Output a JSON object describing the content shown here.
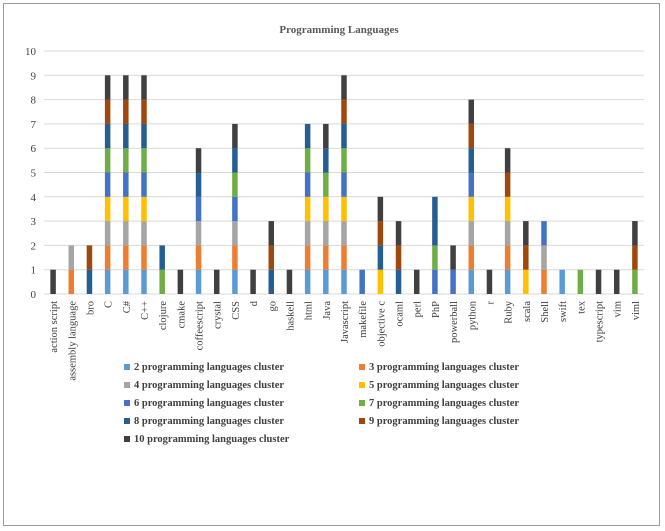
{
  "chart_data": {
    "type": "bar",
    "stacked": true,
    "title": "Programming Languages",
    "xlabel": "",
    "ylabel": "",
    "ylim": [
      0,
      10
    ],
    "yticks": [
      0,
      1,
      2,
      3,
      4,
      5,
      6,
      7,
      8,
      9,
      10
    ],
    "grid": true,
    "legend_position": "bottom",
    "categories": [
      "action script",
      "assembly language",
      "bro",
      "C",
      "C#",
      "C++",
      "clojure",
      "cmake",
      "coffeescript",
      "crystal",
      "CSS",
      "d",
      "go",
      "haskell",
      "html",
      "Java",
      "Javascript",
      "makefile",
      "objective c",
      "ocaml",
      "perl",
      "PhP",
      "powerball",
      "python",
      "r",
      "Ruby",
      "scala",
      "Shell",
      "swift",
      "tex",
      "typescript",
      "vim",
      "viml"
    ],
    "series": [
      {
        "name": "2 programming languages cluster",
        "color": "#5b9bd5",
        "values": [
          0,
          0,
          0,
          1,
          1,
          1,
          0,
          0,
          1,
          0,
          1,
          0,
          0,
          0,
          1,
          1,
          1,
          0,
          0,
          0,
          0,
          0,
          0,
          1,
          0,
          1,
          0,
          0,
          1,
          0,
          0,
          0,
          0
        ]
      },
      {
        "name": "3 programming languages cluster",
        "color": "#ed7d31",
        "values": [
          0,
          1,
          0,
          1,
          1,
          1,
          0,
          0,
          1,
          0,
          1,
          0,
          0,
          0,
          1,
          1,
          1,
          0,
          0,
          0,
          0,
          0,
          0,
          1,
          0,
          1,
          0,
          1,
          0,
          0,
          0,
          0,
          0
        ]
      },
      {
        "name": "4 programming languages cluster",
        "color": "#a5a5a5",
        "values": [
          0,
          1,
          0,
          1,
          1,
          1,
          0,
          0,
          1,
          0,
          1,
          0,
          0,
          0,
          1,
          1,
          1,
          0,
          0,
          0,
          0,
          0,
          0,
          1,
          0,
          1,
          0,
          1,
          0,
          0,
          0,
          0,
          0
        ]
      },
      {
        "name": "5 programming languages cluster",
        "color": "#ffc000",
        "values": [
          0,
          0,
          0,
          1,
          1,
          1,
          0,
          0,
          0,
          0,
          0,
          0,
          0,
          0,
          1,
          1,
          1,
          0,
          1,
          0,
          0,
          0,
          0,
          1,
          0,
          1,
          1,
          0,
          0,
          0,
          0,
          0,
          0
        ]
      },
      {
        "name": "6 programming languages cluster",
        "color": "#4472c4",
        "values": [
          0,
          0,
          0,
          1,
          1,
          1,
          0,
          0,
          1,
          0,
          1,
          0,
          0,
          0,
          1,
          0,
          1,
          1,
          0,
          0,
          0,
          1,
          1,
          1,
          0,
          0,
          0,
          1,
          0,
          0,
          0,
          0,
          0
        ]
      },
      {
        "name": "7 programming languages cluster",
        "color": "#70ad47",
        "values": [
          0,
          0,
          0,
          1,
          1,
          1,
          1,
          0,
          0,
          0,
          1,
          0,
          0,
          0,
          1,
          1,
          1,
          0,
          0,
          0,
          0,
          1,
          0,
          0,
          0,
          0,
          0,
          0,
          0,
          1,
          0,
          0,
          1
        ]
      },
      {
        "name": "8 programming languages cluster",
        "color": "#255e91",
        "values": [
          0,
          0,
          1,
          1,
          1,
          1,
          1,
          0,
          1,
          0,
          1,
          0,
          1,
          0,
          1,
          1,
          1,
          0,
          1,
          1,
          0,
          2,
          0,
          1,
          0,
          0,
          0,
          0,
          0,
          0,
          0,
          0,
          0
        ]
      },
      {
        "name": "9 programming languages cluster",
        "color": "#9e480e",
        "values": [
          0,
          0,
          1,
          1,
          1,
          1,
          0,
          0,
          0,
          0,
          0,
          0,
          1,
          0,
          0,
          0,
          1,
          0,
          1,
          1,
          0,
          0,
          0,
          1,
          0,
          1,
          1,
          0,
          0,
          0,
          0,
          0,
          1
        ]
      },
      {
        "name": "10 programming languages cluster",
        "color": "#404040",
        "values": [
          1,
          0,
          0,
          1,
          1,
          1,
          0,
          1,
          1,
          1,
          1,
          1,
          1,
          1,
          0,
          1,
          1,
          0,
          1,
          1,
          1,
          0,
          1,
          1,
          1,
          1,
          1,
          0,
          0,
          0,
          1,
          1,
          1
        ]
      }
    ]
  }
}
